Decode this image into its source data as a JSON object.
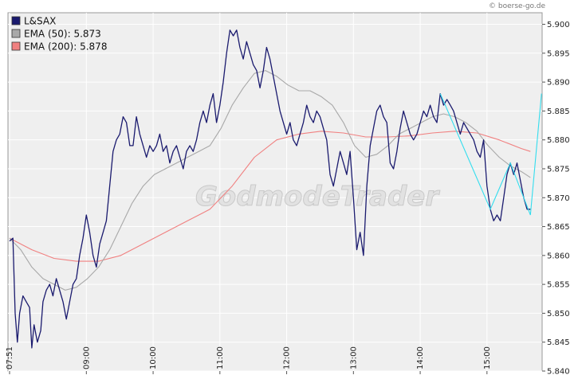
{
  "copyright": "© boerse-go.de",
  "watermark": "GodmodeTrader",
  "colors": {
    "price": "#1a1a6e",
    "ema50": "#a8a8a8",
    "ema200": "#f08080",
    "pattern": "#33ddee",
    "plot_bg": "#efefef",
    "grid": "#ffffff"
  },
  "chart_data": {
    "type": "line",
    "ylim": [
      5.84,
      5.902
    ],
    "y_ticks": [
      "5.840",
      "5.845",
      "5.850",
      "5.855",
      "5.860",
      "5.865",
      "5.870",
      "5.875",
      "5.880",
      "5.885",
      "5.890",
      "5.895",
      "5.900"
    ],
    "x_ticks": [
      "07:51",
      "09:00",
      "10:00",
      "11:00",
      "12:00",
      "13:00",
      "14:00",
      "15:00"
    ],
    "x_ticks_t": [
      0,
      69,
      129,
      189,
      249,
      309,
      369,
      429
    ],
    "xlim": [
      0,
      480
    ],
    "legend_position": "top-left",
    "series": [
      {
        "name": "L&SAX",
        "color": "#1a1a6e",
        "points": [
          [
            0,
            5.8625
          ],
          [
            3,
            5.863
          ],
          [
            5,
            5.85
          ],
          [
            7,
            5.845
          ],
          [
            9,
            5.85
          ],
          [
            12,
            5.853
          ],
          [
            15,
            5.852
          ],
          [
            18,
            5.851
          ],
          [
            20,
            5.844
          ],
          [
            22,
            5.848
          ],
          [
            25,
            5.845
          ],
          [
            28,
            5.847
          ],
          [
            30,
            5.852
          ],
          [
            33,
            5.854
          ],
          [
            36,
            5.855
          ],
          [
            39,
            5.853
          ],
          [
            42,
            5.856
          ],
          [
            45,
            5.854
          ],
          [
            48,
            5.852
          ],
          [
            51,
            5.849
          ],
          [
            54,
            5.852
          ],
          [
            57,
            5.855
          ],
          [
            60,
            5.856
          ],
          [
            63,
            5.86
          ],
          [
            66,
            5.863
          ],
          [
            69,
            5.867
          ],
          [
            72,
            5.864
          ],
          [
            75,
            5.86
          ],
          [
            78,
            5.858
          ],
          [
            81,
            5.862
          ],
          [
            84,
            5.864
          ],
          [
            87,
            5.866
          ],
          [
            90,
            5.872
          ],
          [
            93,
            5.878
          ],
          [
            96,
            5.88
          ],
          [
            99,
            5.881
          ],
          [
            102,
            5.884
          ],
          [
            105,
            5.883
          ],
          [
            108,
            5.879
          ],
          [
            111,
            5.879
          ],
          [
            114,
            5.884
          ],
          [
            117,
            5.881
          ],
          [
            120,
            5.879
          ],
          [
            123,
            5.877
          ],
          [
            126,
            5.879
          ],
          [
            129,
            5.878
          ],
          [
            132,
            5.879
          ],
          [
            135,
            5.881
          ],
          [
            138,
            5.878
          ],
          [
            141,
            5.879
          ],
          [
            144,
            5.876
          ],
          [
            147,
            5.878
          ],
          [
            150,
            5.879
          ],
          [
            153,
            5.877
          ],
          [
            156,
            5.875
          ],
          [
            159,
            5.878
          ],
          [
            162,
            5.879
          ],
          [
            165,
            5.878
          ],
          [
            168,
            5.88
          ],
          [
            171,
            5.883
          ],
          [
            174,
            5.885
          ],
          [
            177,
            5.883
          ],
          [
            180,
            5.886
          ],
          [
            183,
            5.888
          ],
          [
            186,
            5.883
          ],
          [
            189,
            5.886
          ],
          [
            192,
            5.89
          ],
          [
            195,
            5.895
          ],
          [
            198,
            5.899
          ],
          [
            201,
            5.898
          ],
          [
            204,
            5.899
          ],
          [
            207,
            5.896
          ],
          [
            210,
            5.894
          ],
          [
            213,
            5.897
          ],
          [
            216,
            5.895
          ],
          [
            219,
            5.893
          ],
          [
            222,
            5.892
          ],
          [
            225,
            5.889
          ],
          [
            228,
            5.892
          ],
          [
            231,
            5.896
          ],
          [
            234,
            5.894
          ],
          [
            237,
            5.891
          ],
          [
            240,
            5.888
          ],
          [
            243,
            5.885
          ],
          [
            246,
            5.883
          ],
          [
            249,
            5.881
          ],
          [
            252,
            5.883
          ],
          [
            255,
            5.88
          ],
          [
            258,
            5.879
          ],
          [
            261,
            5.881
          ],
          [
            264,
            5.883
          ],
          [
            267,
            5.886
          ],
          [
            270,
            5.884
          ],
          [
            273,
            5.883
          ],
          [
            276,
            5.885
          ],
          [
            279,
            5.884
          ],
          [
            282,
            5.882
          ],
          [
            285,
            5.88
          ],
          [
            288,
            5.874
          ],
          [
            291,
            5.872
          ],
          [
            294,
            5.875
          ],
          [
            297,
            5.878
          ],
          [
            300,
            5.876
          ],
          [
            303,
            5.874
          ],
          [
            306,
            5.878
          ],
          [
            309,
            5.87
          ],
          [
            312,
            5.861
          ],
          [
            315,
            5.864
          ],
          [
            318,
            5.86
          ],
          [
            321,
            5.872
          ],
          [
            324,
            5.879
          ],
          [
            327,
            5.882
          ],
          [
            330,
            5.885
          ],
          [
            333,
            5.886
          ],
          [
            336,
            5.884
          ],
          [
            339,
            5.883
          ],
          [
            342,
            5.876
          ],
          [
            345,
            5.875
          ],
          [
            348,
            5.878
          ],
          [
            351,
            5.882
          ],
          [
            354,
            5.885
          ],
          [
            357,
            5.883
          ],
          [
            360,
            5.881
          ],
          [
            363,
            5.88
          ],
          [
            366,
            5.881
          ],
          [
            369,
            5.883
          ],
          [
            372,
            5.885
          ],
          [
            375,
            5.884
          ],
          [
            378,
            5.886
          ],
          [
            381,
            5.884
          ],
          [
            384,
            5.883
          ],
          [
            387,
            5.888
          ],
          [
            390,
            5.886
          ],
          [
            393,
            5.887
          ],
          [
            396,
            5.886
          ],
          [
            399,
            5.885
          ],
          [
            402,
            5.883
          ],
          [
            405,
            5.881
          ],
          [
            408,
            5.883
          ],
          [
            411,
            5.882
          ],
          [
            414,
            5.881
          ],
          [
            417,
            5.88
          ],
          [
            420,
            5.878
          ],
          [
            423,
            5.877
          ],
          [
            426,
            5.88
          ],
          [
            429,
            5.872
          ],
          [
            432,
            5.868
          ],
          [
            435,
            5.866
          ],
          [
            438,
            5.867
          ],
          [
            441,
            5.866
          ],
          [
            444,
            5.87
          ],
          [
            447,
            5.874
          ],
          [
            450,
            5.876
          ],
          [
            453,
            5.874
          ],
          [
            456,
            5.876
          ],
          [
            459,
            5.873
          ],
          [
            462,
            5.87
          ],
          [
            465,
            5.868
          ],
          [
            468,
            5.868
          ]
        ]
      },
      {
        "name": "EMA (50)",
        "legend_value": "5.873",
        "color": "#a8a8a8",
        "points": [
          [
            0,
            5.863
          ],
          [
            10,
            5.861
          ],
          [
            20,
            5.858
          ],
          [
            30,
            5.856
          ],
          [
            40,
            5.855
          ],
          [
            50,
            5.854
          ],
          [
            60,
            5.8545
          ],
          [
            70,
            5.856
          ],
          [
            80,
            5.858
          ],
          [
            90,
            5.861
          ],
          [
            100,
            5.865
          ],
          [
            110,
            5.869
          ],
          [
            120,
            5.872
          ],
          [
            130,
            5.874
          ],
          [
            140,
            5.875
          ],
          [
            150,
            5.876
          ],
          [
            160,
            5.877
          ],
          [
            170,
            5.878
          ],
          [
            180,
            5.879
          ],
          [
            190,
            5.882
          ],
          [
            200,
            5.886
          ],
          [
            210,
            5.889
          ],
          [
            220,
            5.8915
          ],
          [
            230,
            5.892
          ],
          [
            240,
            5.891
          ],
          [
            250,
            5.8895
          ],
          [
            260,
            5.8885
          ],
          [
            270,
            5.8885
          ],
          [
            280,
            5.8875
          ],
          [
            290,
            5.886
          ],
          [
            300,
            5.883
          ],
          [
            310,
            5.879
          ],
          [
            320,
            5.877
          ],
          [
            330,
            5.8775
          ],
          [
            340,
            5.879
          ],
          [
            350,
            5.881
          ],
          [
            360,
            5.882
          ],
          [
            370,
            5.883
          ],
          [
            380,
            5.884
          ],
          [
            390,
            5.8845
          ],
          [
            400,
            5.884
          ],
          [
            410,
            5.883
          ],
          [
            420,
            5.8815
          ],
          [
            430,
            5.879
          ],
          [
            440,
            5.877
          ],
          [
            450,
            5.8755
          ],
          [
            460,
            5.8745
          ],
          [
            468,
            5.8735
          ]
        ]
      },
      {
        "name": "EMA (200)",
        "legend_value": "5.878",
        "color": "#f08080",
        "points": [
          [
            0,
            5.863
          ],
          [
            20,
            5.861
          ],
          [
            40,
            5.8595
          ],
          [
            60,
            5.859
          ],
          [
            80,
            5.859
          ],
          [
            100,
            5.86
          ],
          [
            120,
            5.862
          ],
          [
            140,
            5.864
          ],
          [
            160,
            5.866
          ],
          [
            180,
            5.868
          ],
          [
            200,
            5.872
          ],
          [
            220,
            5.877
          ],
          [
            240,
            5.88
          ],
          [
            260,
            5.881
          ],
          [
            280,
            5.8815
          ],
          [
            300,
            5.8812
          ],
          [
            320,
            5.8805
          ],
          [
            340,
            5.8805
          ],
          [
            360,
            5.8807
          ],
          [
            380,
            5.8812
          ],
          [
            400,
            5.8815
          ],
          [
            420,
            5.8812
          ],
          [
            440,
            5.88
          ],
          [
            460,
            5.8785
          ],
          [
            468,
            5.878
          ]
        ]
      }
    ],
    "pattern_line": {
      "color": "#33ddee",
      "points": [
        [
          387,
          5.888
        ],
        [
          432,
          5.868
        ],
        [
          450,
          5.876
        ],
        [
          468,
          5.867
        ],
        [
          478,
          5.888
        ]
      ]
    }
  }
}
